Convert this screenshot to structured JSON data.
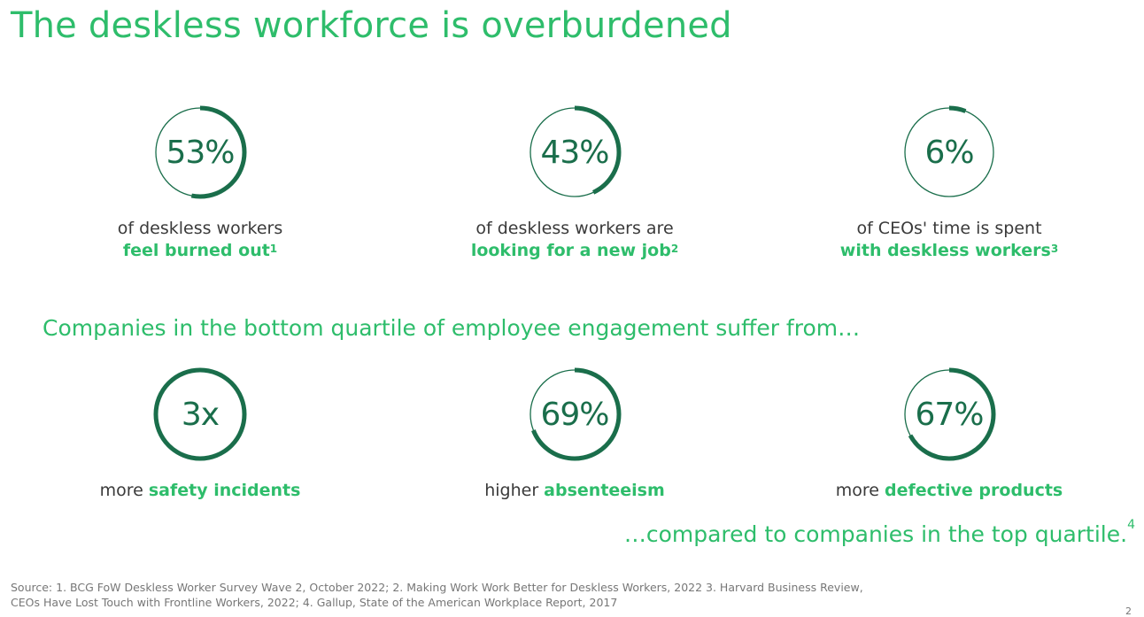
{
  "title": "The deskless workforce is overburdened",
  "top_stats": [
    {
      "value": "53%",
      "fraction": 0.53,
      "line1": "of deskless workers",
      "line2": "feel burned out",
      "footnote": "1"
    },
    {
      "value": "43%",
      "fraction": 0.43,
      "line1": "of deskless workers are",
      "line2": "looking for a new job",
      "footnote": "2"
    },
    {
      "value": "6%",
      "fraction": 0.06,
      "line1": "of CEOs' time is spent",
      "line2": "with deskless workers",
      "footnote": "3"
    }
  ],
  "subhead": "Companies in the bottom quartile of employee engagement suffer from…",
  "bottom_stats": [
    {
      "value": "3x",
      "fraction": 1.0,
      "prefix": "more ",
      "highlight": "safety incidents"
    },
    {
      "value": "69%",
      "fraction": 0.69,
      "prefix": "higher ",
      "highlight": "absenteeism"
    },
    {
      "value": "67%",
      "fraction": 0.67,
      "prefix": "more ",
      "highlight": "defective products"
    }
  ],
  "compared": {
    "text": "…compared to companies in the top quartile.",
    "footnote": "4"
  },
  "source": {
    "line1": "Source: 1. BCG FoW Deskless Worker Survey Wave 2, October 2022; 2. Making Work Work Better for Deskless Workers, 2022  3. Harvard Business Review,",
    "line2": "CEOs Have Lost Touch with Frontline Workers, 2022; 4. Gallup, State of the American Workplace Report, 2017"
  },
  "page_number": "2",
  "colors": {
    "accent": "#2ebd6b",
    "dark_green": "#1a6e4b",
    "track": "#1a6e4b"
  }
}
